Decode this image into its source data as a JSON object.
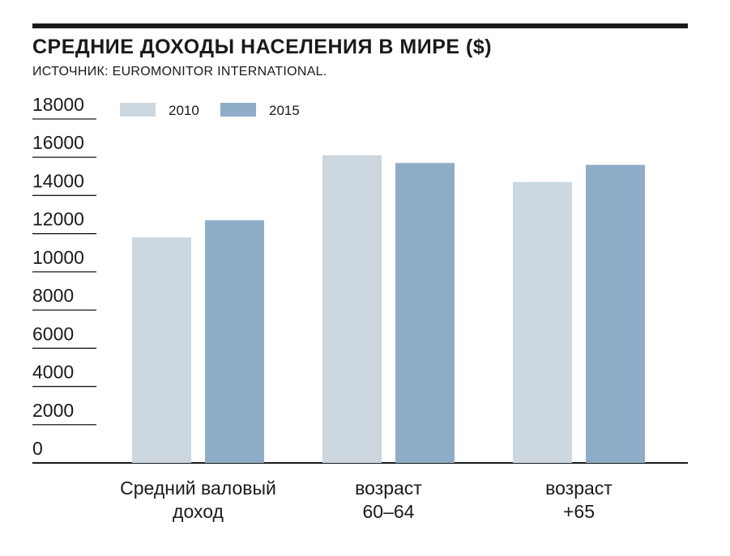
{
  "chart_data": {
    "type": "bar",
    "title": "СРЕДНИЕ ДОХОДЫ НАСЕЛЕНИЯ В МИРЕ ($)",
    "subtitle": "ИСТОЧНИК: EUROMONITOR INTERNATIONAL.",
    "categories": [
      [
        "Средний валовый",
        "доход"
      ],
      [
        "возраст",
        "60–64"
      ],
      [
        "возраст",
        "+65"
      ]
    ],
    "series": [
      {
        "name": "2010",
        "color": "#ccd7df",
        "values": [
          11800,
          16100,
          14700
        ]
      },
      {
        "name": "2015",
        "color": "#8fadc8",
        "values": [
          12700,
          15700,
          15600
        ]
      }
    ],
    "yticks": [
      0,
      2000,
      4000,
      6000,
      8000,
      10000,
      12000,
      14000,
      16000,
      18000
    ],
    "ylim": [
      0,
      18000
    ],
    "legend_position": "top-left",
    "grid": false
  }
}
